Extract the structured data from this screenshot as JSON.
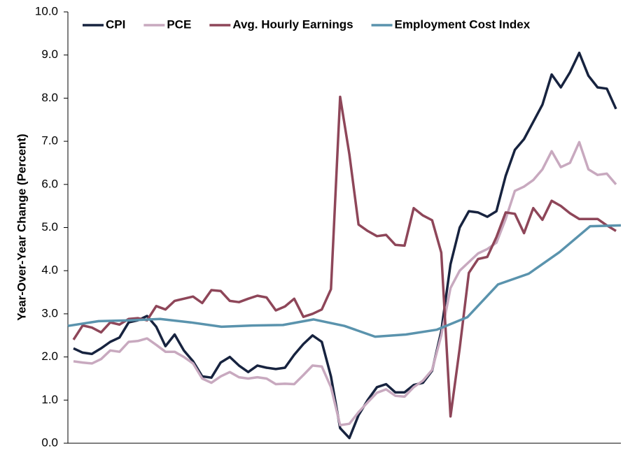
{
  "chart_data": {
    "type": "line",
    "ylabel": "Year-Over-Year Change (Percent)",
    "ylim": [
      0,
      10
    ],
    "yticks": [
      {
        "value": 0,
        "label": "0.0"
      },
      {
        "value": 1,
        "label": "1.0"
      },
      {
        "value": 2,
        "label": "2.0"
      },
      {
        "value": 3,
        "label": "3.0"
      },
      {
        "value": 4,
        "label": "4.0"
      },
      {
        "value": 5,
        "label": "5.0"
      },
      {
        "value": 6,
        "label": "6.0"
      },
      {
        "value": 7,
        "label": "7.0"
      },
      {
        "value": 8,
        "label": "8.0"
      },
      {
        "value": 9,
        "label": "9.0"
      },
      {
        "value": 10,
        "label": "10.0"
      }
    ],
    "grid": false,
    "legend": "top-left",
    "series": [
      {
        "name": "CPI",
        "color": "#17233f",
        "values": [
          2.2,
          2.1,
          2.07,
          2.2,
          2.35,
          2.45,
          2.8,
          2.85,
          2.95,
          2.7,
          2.25,
          2.52,
          2.15,
          1.9,
          1.55,
          1.52,
          1.87,
          2.0,
          1.8,
          1.65,
          1.8,
          1.75,
          1.72,
          1.75,
          2.05,
          2.3,
          2.5,
          2.35,
          1.55,
          0.35,
          0.12,
          0.65,
          1.0,
          1.3,
          1.37,
          1.18,
          1.18,
          1.35,
          1.4,
          1.68,
          2.6,
          4.15,
          5.0,
          5.38,
          5.35,
          5.25,
          5.38,
          6.2,
          6.8,
          7.05,
          7.45,
          7.85,
          8.55,
          8.25,
          8.6,
          9.05,
          8.52,
          8.25,
          8.22,
          7.75
        ]
      },
      {
        "name": "PCE",
        "color": "#c8a9bf",
        "values": [
          1.9,
          1.87,
          1.85,
          1.95,
          2.15,
          2.12,
          2.35,
          2.37,
          2.43,
          2.28,
          2.12,
          2.12,
          2.0,
          1.85,
          1.5,
          1.4,
          1.55,
          1.65,
          1.53,
          1.5,
          1.53,
          1.5,
          1.37,
          1.38,
          1.37,
          1.58,
          1.8,
          1.78,
          1.3,
          0.42,
          0.45,
          0.72,
          0.95,
          1.17,
          1.25,
          1.1,
          1.08,
          1.3,
          1.45,
          1.7,
          2.5,
          3.6,
          4.0,
          4.2,
          4.4,
          4.5,
          4.65,
          5.2,
          5.85,
          5.95,
          6.1,
          6.35,
          6.77,
          6.4,
          6.5,
          6.98,
          6.35,
          6.22,
          6.25,
          6.0
        ]
      },
      {
        "name": "Avg. Hourly Earnings",
        "color": "#8e4659",
        "values": [
          2.4,
          2.73,
          2.68,
          2.57,
          2.8,
          2.75,
          2.88,
          2.9,
          2.85,
          3.18,
          3.1,
          3.3,
          3.35,
          3.4,
          3.25,
          3.55,
          3.53,
          3.3,
          3.27,
          3.35,
          3.42,
          3.38,
          3.08,
          3.17,
          3.35,
          2.93,
          3.0,
          3.1,
          3.57,
          8.03,
          6.7,
          5.07,
          4.92,
          4.8,
          4.83,
          4.6,
          4.58,
          5.45,
          5.28,
          5.17,
          4.42,
          0.62,
          2.2,
          3.95,
          4.27,
          4.32,
          4.78,
          5.35,
          5.32,
          4.87,
          5.45,
          5.18,
          5.62,
          5.5,
          5.33,
          5.2,
          5.2,
          5.2,
          5.05,
          4.92
        ]
      },
      {
        "name": "Employment Cost Index",
        "color": "#5a93ad",
        "values": [
          2.72,
          2.83,
          2.85,
          2.88,
          2.8,
          2.7,
          2.73,
          2.74,
          2.87,
          2.72,
          2.47,
          2.52,
          2.63,
          2.92,
          3.68,
          3.93,
          4.43,
          5.03,
          5.05
        ]
      }
    ]
  }
}
